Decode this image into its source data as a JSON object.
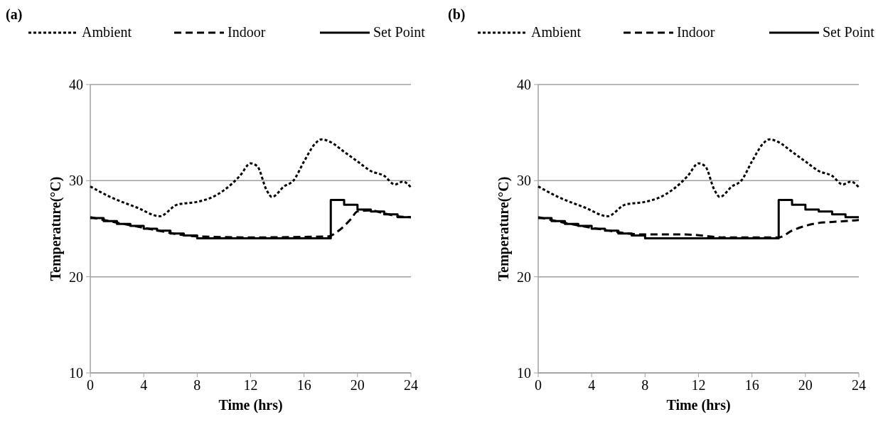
{
  "chart_data": [
    {
      "type": "line",
      "title": "(a)",
      "xlabel": "Time (hrs)",
      "ylabel": "Temperature(°C)",
      "xlim": [
        0,
        24
      ],
      "xticks": [
        0,
        4,
        8,
        12,
        16,
        20,
        24
      ],
      "ylim": [
        10,
        40
      ],
      "yticks": [
        10,
        20,
        30,
        40
      ],
      "grid": "y",
      "legend": "top",
      "series": [
        {
          "name": "Ambient",
          "color": "#000000",
          "line_style": "dotted",
          "x": [
            0,
            1.5,
            3.5,
            5.2,
            6.5,
            8,
            9,
            10,
            11.2,
            12,
            12.5,
            13.2,
            13.6,
            14.5,
            15.2,
            16,
            16.8,
            17.3,
            18,
            19,
            20,
            21,
            22,
            22.8,
            23.4,
            24
          ],
          "values": [
            29.4,
            28.3,
            27.2,
            26.3,
            27.5,
            27.8,
            28.2,
            29,
            30.5,
            31.8,
            31.5,
            29,
            28.3,
            29.4,
            30,
            32,
            33.8,
            34.3,
            34,
            33,
            32,
            31,
            30.5,
            29.6,
            29.9,
            29.3
          ]
        },
        {
          "name": "Indoor",
          "color": "#000000",
          "line_style": "dashed",
          "x": [
            0,
            4,
            8,
            12,
            17.8,
            18.5,
            19.5,
            20,
            21,
            22,
            23,
            24
          ],
          "values": [
            26.2,
            25.1,
            24.2,
            24.1,
            24.2,
            24.7,
            26,
            26.8,
            26.9,
            26.6,
            26.3,
            26.2
          ]
        },
        {
          "name": "Set Point",
          "color": "#000000",
          "type": "step",
          "line_style": "solid",
          "x": [
            0,
            1,
            2,
            3,
            4,
            5,
            6,
            7,
            8,
            9,
            10,
            11,
            12,
            13,
            14,
            15,
            16,
            17,
            18,
            19,
            20,
            21,
            22,
            23,
            24
          ],
          "values": [
            26.1,
            25.8,
            25.5,
            25.3,
            25,
            24.8,
            24.5,
            24.3,
            24,
            24,
            24,
            24,
            24,
            24,
            24,
            24,
            24,
            24,
            28,
            27.5,
            27,
            26.8,
            26.5,
            26.2,
            26.2
          ]
        }
      ]
    },
    {
      "type": "line",
      "title": "(b)",
      "xlabel": "Time (hrs)",
      "ylabel": "Temperature(°C)",
      "xlim": [
        0,
        24
      ],
      "xticks": [
        0,
        4,
        8,
        12,
        16,
        20,
        24
      ],
      "ylim": [
        10,
        40
      ],
      "yticks": [
        10,
        20,
        30,
        40
      ],
      "grid": "y",
      "legend": "top",
      "series": [
        {
          "name": "Ambient",
          "color": "#000000",
          "line_style": "dotted",
          "x": [
            0,
            1.5,
            3.5,
            5.2,
            6.5,
            8,
            9,
            10,
            11.2,
            12,
            12.5,
            13.2,
            13.6,
            14.5,
            15.2,
            16,
            16.8,
            17.3,
            18,
            19,
            20,
            21,
            22,
            22.8,
            23.4,
            24
          ],
          "values": [
            29.4,
            28.3,
            27.2,
            26.3,
            27.5,
            27.8,
            28.2,
            29,
            30.5,
            31.8,
            31.5,
            29,
            28.3,
            29.4,
            30,
            32,
            33.8,
            34.3,
            34,
            33,
            32,
            31,
            30.5,
            29.6,
            29.9,
            29.3
          ]
        },
        {
          "name": "Indoor",
          "color": "#000000",
          "line_style": "dashed",
          "x": [
            0,
            4,
            8,
            11,
            14,
            18,
            19,
            20,
            21,
            22,
            23,
            24
          ],
          "values": [
            26.2,
            25.1,
            24.4,
            24.4,
            24.1,
            24.1,
            24.8,
            25.3,
            25.6,
            25.7,
            25.8,
            25.9
          ]
        },
        {
          "name": "Set Point",
          "color": "#000000",
          "type": "step",
          "line_style": "solid",
          "x": [
            0,
            1,
            2,
            3,
            4,
            5,
            6,
            7,
            8,
            9,
            10,
            11,
            12,
            13,
            14,
            15,
            16,
            17,
            18,
            19,
            20,
            21,
            22,
            23,
            24
          ],
          "values": [
            26.1,
            25.8,
            25.5,
            25.3,
            25,
            24.8,
            24.5,
            24.3,
            24,
            24,
            24,
            24,
            24,
            24,
            24,
            24,
            24,
            24,
            28,
            27.5,
            27,
            26.8,
            26.5,
            26.2,
            26.2
          ]
        }
      ]
    }
  ]
}
